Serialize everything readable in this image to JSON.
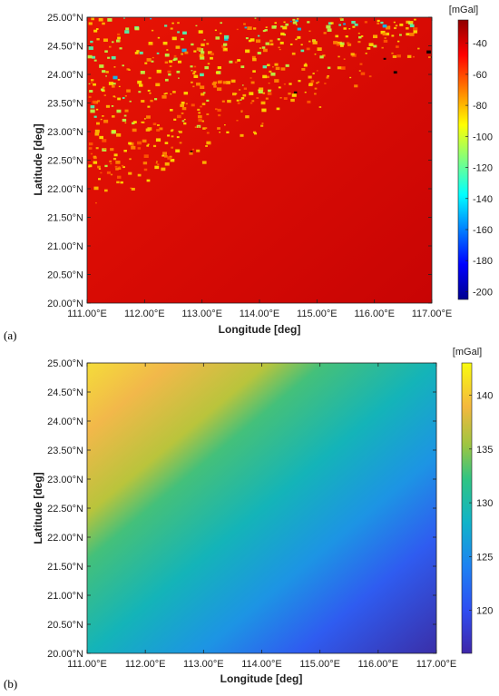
{
  "chart_data": [
    {
      "panel_label": "(a)",
      "type": "heatmap",
      "xlabel": "Longitude [deg]",
      "ylabel": "Latitude [deg]",
      "xlim": [
        111,
        117
      ],
      "ylim": [
        20,
        25
      ],
      "x_ticks": [
        "111.00°E",
        "112.00°E",
        "113.00°E",
        "114.00°E",
        "115.00°E",
        "116.00°E",
        "117.00°E"
      ],
      "y_ticks": [
        "20.00°N",
        "20.50°N",
        "21.00°N",
        "21.50°N",
        "22.00°N",
        "22.50°N",
        "23.00°N",
        "23.50°N",
        "24.00°N",
        "24.50°N",
        "25.00°N"
      ],
      "colorbar": {
        "unit": "[mGal]",
        "range": [
          -205,
          -25
        ],
        "colormap": "jet",
        "ticks": [
          -200,
          -180,
          -160,
          -140,
          -120,
          -100,
          -80,
          -60,
          -40
        ],
        "tick_labels": [
          "-200",
          "-180",
          "-160",
          "-140",
          "-120",
          "-100",
          "-80",
          "-60",
          "-40"
        ]
      }
    },
    {
      "panel_label": "(b)",
      "type": "heatmap",
      "xlabel": "Longitude [deg]",
      "ylabel": "Latitude [deg]",
      "xlim": [
        111,
        117
      ],
      "ylim": [
        20,
        25
      ],
      "x_ticks": [
        "111.00°E",
        "112.00°E",
        "113.00°E",
        "114.00°E",
        "115.00°E",
        "116.00°E",
        "117.00°E"
      ],
      "y_ticks": [
        "20.00°N",
        "20.50°N",
        "21.00°N",
        "21.50°N",
        "22.00°N",
        "22.50°N",
        "23.00°N",
        "23.50°N",
        "24.00°N",
        "24.50°N",
        "25.00°N"
      ],
      "colorbar": {
        "unit": "[mGal]",
        "range": [
          116,
          143
        ],
        "colormap": "parula",
        "ticks": [
          120,
          125,
          130,
          135,
          140
        ],
        "tick_labels": [
          "120",
          "125",
          "130",
          "135",
          "140"
        ]
      }
    }
  ]
}
